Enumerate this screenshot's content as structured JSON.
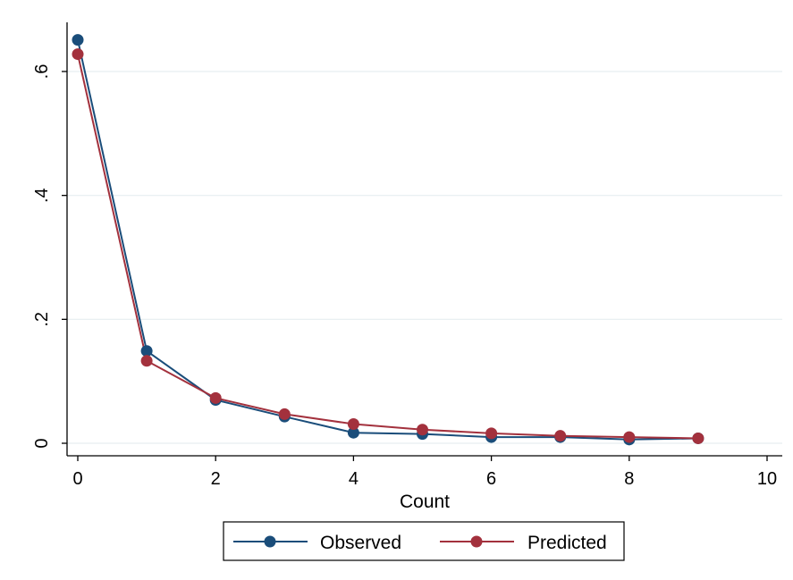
{
  "chart_data": {
    "type": "line",
    "title": "",
    "xlabel": "Count",
    "ylabel": "",
    "xlim": [
      0,
      10
    ],
    "ylim": [
      0,
      0.65
    ],
    "x_ticks": [
      0,
      2,
      4,
      6,
      8,
      10
    ],
    "x_tick_labels": [
      "0",
      "2",
      "4",
      "6",
      "8",
      "10"
    ],
    "y_ticks": [
      0,
      0.2,
      0.4,
      0.6
    ],
    "y_tick_labels": [
      "0",
      ".2",
      ".4",
      ".6"
    ],
    "grid": "horizontal",
    "legend_position": "bottom",
    "x": [
      0,
      1,
      2,
      3,
      4,
      5,
      6,
      7,
      8,
      9
    ],
    "series": [
      {
        "name": "Observed",
        "color": "#1a4d7a",
        "values": [
          0.651,
          0.149,
          0.07,
          0.043,
          0.017,
          0.015,
          0.01,
          0.01,
          0.006,
          0.008
        ]
      },
      {
        "name": "Predicted",
        "color": "#a3313d",
        "values": [
          0.628,
          0.133,
          0.073,
          0.047,
          0.031,
          0.022,
          0.016,
          0.012,
          0.01,
          0.008
        ]
      }
    ]
  }
}
